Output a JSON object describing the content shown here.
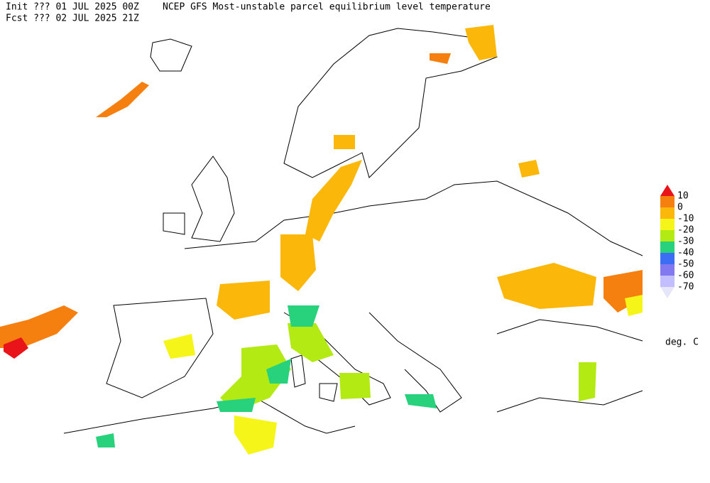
{
  "header": {
    "init": "Init  ??? 01 JUL 2025 00Z",
    "title": "NCEP GFS Most-unstable parcel equilibrium level temperature",
    "fcst": "Fcst ??? 02 JUL 2025 21Z"
  },
  "legend": {
    "levels": [
      10,
      0,
      -10,
      -20,
      -30,
      -40,
      -50,
      -60,
      -70
    ],
    "colors": [
      "#e8141a",
      "#f57f0f",
      "#fbb70a",
      "#f5f51a",
      "#b4ea14",
      "#28d27c",
      "#3c6ef5",
      "#8278f0",
      "#c3beff",
      "#e6e6fa"
    ],
    "unit": "deg. C"
  }
}
